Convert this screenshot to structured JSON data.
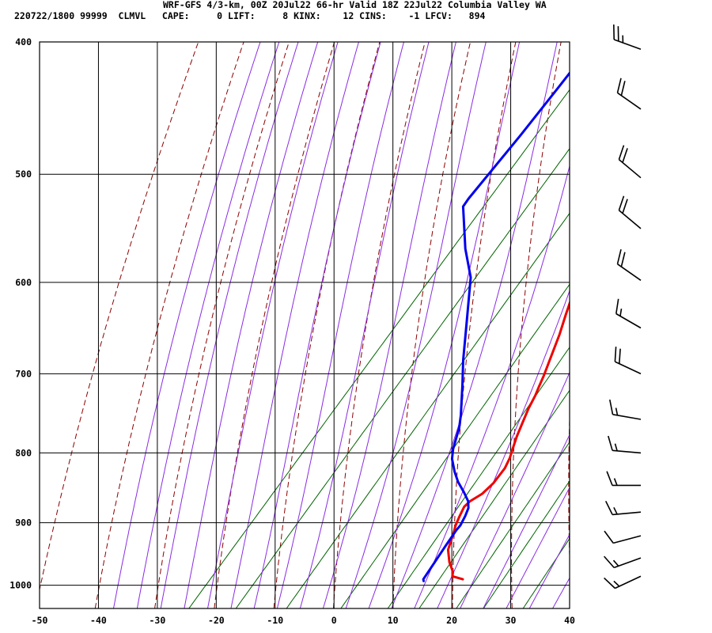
{
  "header": {
    "line1": "WRF-GFS 4/3-km, 00Z 20Jul22 66-hr Valid 18Z 22Jul22 Columbia Valley WA",
    "line2": "220722/1800 99999  CLMVL   CAPE:     0 LIFT:     8 KINX:    12 CINS:    -1 LFCV:   894"
  },
  "chart_data": {
    "type": "line",
    "title": "WRF-GFS 4/3-km, 00Z 20Jul22 66-hr Valid 18Z 22Jul22 Columbia Valley WA",
    "xlabel": "",
    "ylabel": "",
    "xlim": [
      -50,
      40
    ],
    "ylim": [
      1040,
      400
    ],
    "x_ticks": [
      -50,
      -40,
      -30,
      -20,
      -10,
      0,
      10,
      20,
      30,
      40
    ],
    "y_ticks": [
      400,
      500,
      600,
      700,
      800,
      900,
      1000
    ],
    "y_scale": "log-pressure",
    "grid": true,
    "colors": {
      "temperature": "#ee0000",
      "dewpoint": "#0000ee",
      "dry_adiabat": "#8b0000",
      "mixing_ratio": "#006400",
      "moist_adiabat": "#8a2be2",
      "grid": "#000000"
    },
    "series": [
      {
        "color": "#ee0000",
        "points": [
          [
            17.7,
            990
          ],
          [
            15.5,
            985
          ],
          [
            15,
            978
          ],
          [
            13,
            962
          ],
          [
            11,
            942
          ],
          [
            9.5,
            915
          ],
          [
            8.8,
            904
          ],
          [
            8.2,
            891
          ],
          [
            7.6,
            876
          ],
          [
            7.8,
            868
          ],
          [
            8.8,
            857
          ],
          [
            9.2,
            842
          ],
          [
            9.0,
            821
          ],
          [
            8.4,
            807
          ],
          [
            7.6,
            795
          ],
          [
            6.5,
            778
          ],
          [
            5.5,
            760
          ],
          [
            4.5,
            742
          ],
          [
            3.8,
            726
          ],
          [
            3.2,
            716
          ],
          [
            2.4,
            702
          ],
          [
            1.2,
            684
          ],
          [
            -0.8,
            655
          ],
          [
            -2.6,
            633
          ],
          [
            -3.8,
            618
          ],
          [
            -6.6,
            591
          ],
          [
            -10.5,
            555
          ],
          [
            -14.5,
            520
          ],
          [
            -18,
            494
          ],
          [
            -20.5,
            477
          ],
          [
            -23.5,
            455
          ],
          [
            -25.5,
            441
          ],
          [
            -29,
            418
          ],
          [
            -32.8,
            404
          ]
        ]
      },
      {
        "color": "#0000ee",
        "points": [
          [
            11.3,
            993
          ],
          [
            11,
            990
          ],
          [
            10.5,
            962
          ],
          [
            10,
            935
          ],
          [
            9.6,
            911
          ],
          [
            9.6,
            904
          ],
          [
            9.1,
            890
          ],
          [
            8.5,
            878
          ],
          [
            7.5,
            868
          ],
          [
            5.5,
            855
          ],
          [
            3,
            840
          ],
          [
            1,
            826
          ],
          [
            -1.3,
            808
          ],
          [
            -2.5,
            795
          ],
          [
            -4.5,
            767
          ],
          [
            -6,
            751
          ],
          [
            -10,
            714
          ],
          [
            -13.5,
            684
          ],
          [
            -18.5,
            640
          ],
          [
            -24,
            595
          ],
          [
            -29,
            567
          ],
          [
            -35.4,
            528
          ],
          [
            -35.6,
            521
          ],
          [
            -35.8,
            468
          ],
          [
            -36.2,
            432
          ],
          [
            -36.6,
            404
          ]
        ]
      }
    ],
    "wind_barbs": [
      {
        "p": 405,
        "dir": 290,
        "kt": 25
      },
      {
        "p": 448,
        "dir": 305,
        "kt": 20
      },
      {
        "p": 503,
        "dir": 310,
        "kt": 20
      },
      {
        "p": 548,
        "dir": 310,
        "kt": 20
      },
      {
        "p": 598,
        "dir": 305,
        "kt": 20
      },
      {
        "p": 648,
        "dir": 300,
        "kt": 15
      },
      {
        "p": 700,
        "dir": 295,
        "kt": 20
      },
      {
        "p": 756,
        "dir": 280,
        "kt": 15
      },
      {
        "p": 800,
        "dir": 275,
        "kt": 15
      },
      {
        "p": 845,
        "dir": 270,
        "kt": 15
      },
      {
        "p": 884,
        "dir": 265,
        "kt": 15
      },
      {
        "p": 920,
        "dir": 255,
        "kt": 10
      },
      {
        "p": 955,
        "dir": 250,
        "kt": 15
      },
      {
        "p": 985,
        "dir": 245,
        "kt": 15
      }
    ]
  }
}
